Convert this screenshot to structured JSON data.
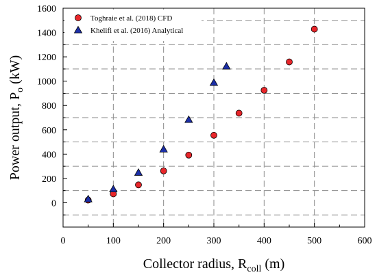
{
  "chart_data": {
    "type": "scatter",
    "title": "",
    "xlabel": {
      "main": "Collector radius, R",
      "sub": "coll",
      "unit": " (m)"
    },
    "ylabel": {
      "main": "Power output, P",
      "sub": "o",
      "unit": " (kW)"
    },
    "xlim": [
      0,
      600
    ],
    "ylim": [
      -200,
      1600
    ],
    "xticks": [
      "0",
      "100",
      "200",
      "300",
      "400",
      "500",
      "600"
    ],
    "yticks": [
      "0",
      "200",
      "400",
      "600",
      "800",
      "1000",
      "1200",
      "1400",
      "1600"
    ],
    "grid": "dashed",
    "legend_position": "top-left",
    "series": [
      {
        "name": "Toghraie et al. (2018) CFD",
        "marker": "circle",
        "color": "#e8262a",
        "x": [
          50,
          100,
          150,
          200,
          250,
          300,
          350,
          400,
          450,
          500
        ],
        "y": [
          22,
          73,
          147,
          262,
          392,
          555,
          737,
          925,
          1158,
          1428
        ]
      },
      {
        "name": "Khelifi et al. (2016) Analytical",
        "marker": "triangle",
        "color": "#1c2fa8",
        "x": [
          50,
          100,
          150,
          200,
          250,
          300,
          325
        ],
        "y": [
          30,
          112,
          248,
          440,
          683,
          988,
          1122
        ]
      }
    ]
  }
}
